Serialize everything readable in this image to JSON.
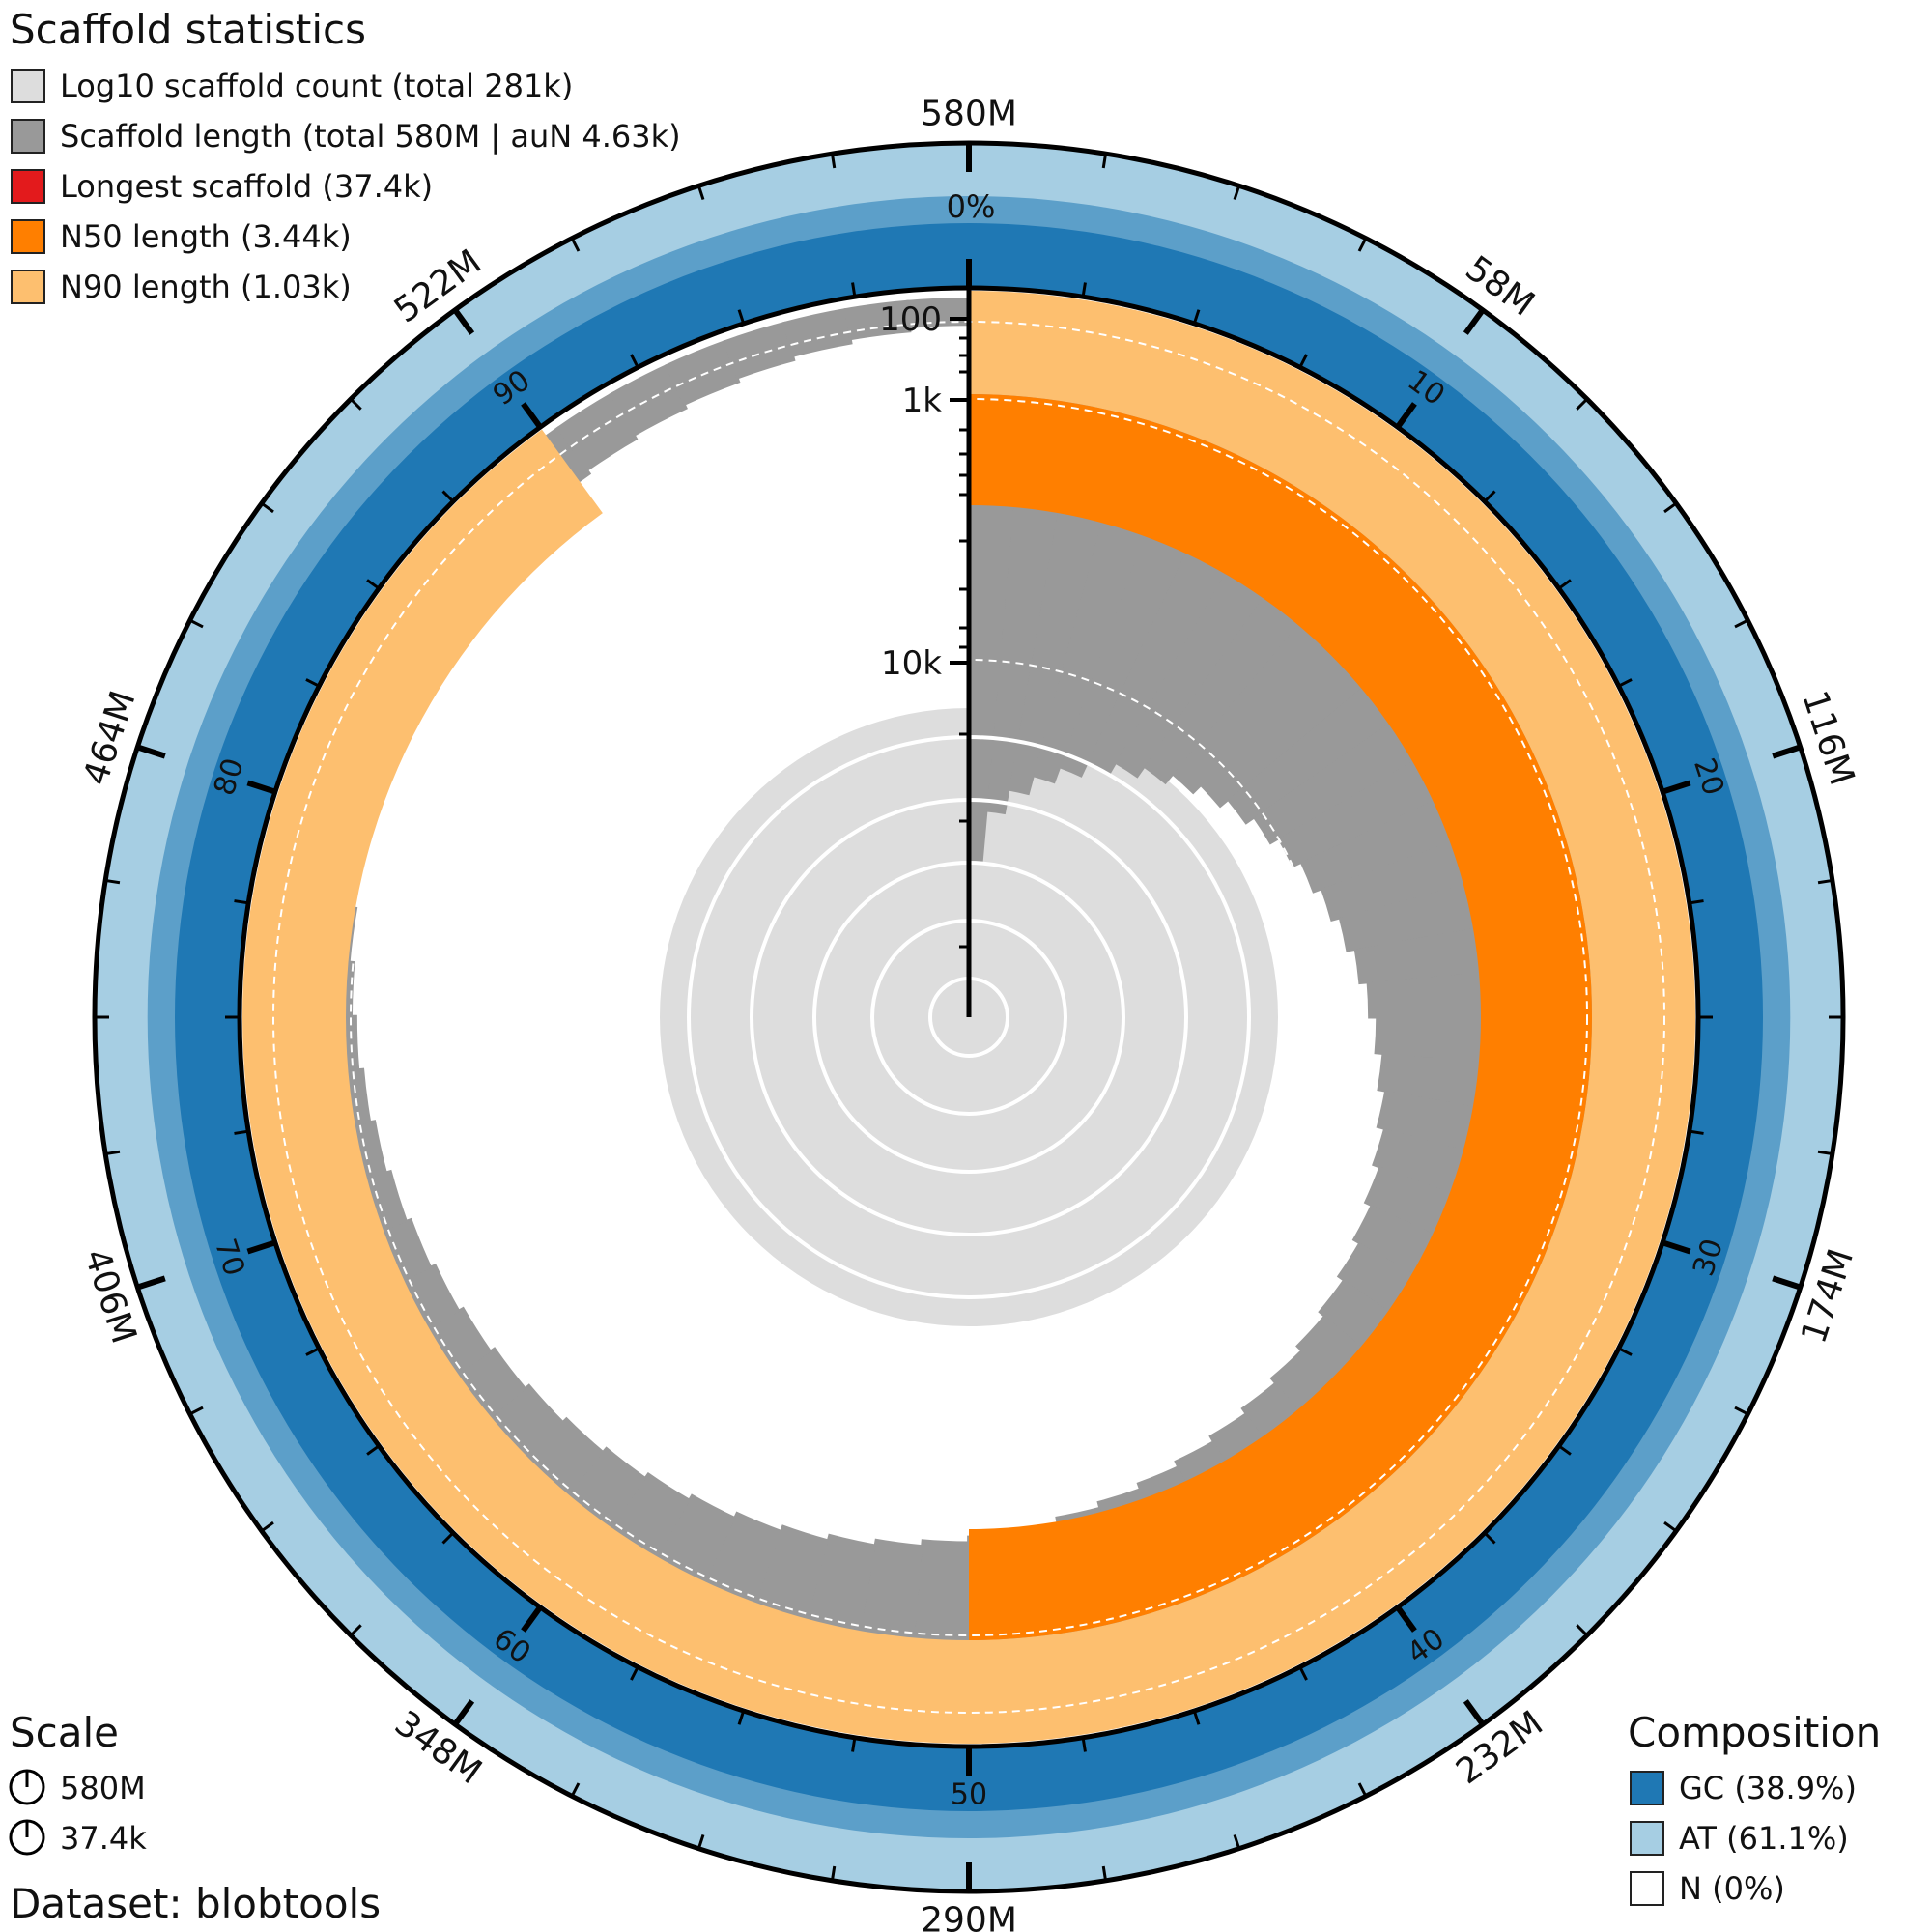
{
  "title": "Scaffold statistics",
  "legend": [
    {
      "label": "Log10 scaffold count (total 281k)",
      "color": "#dddddd"
    },
    {
      "label": "Scaffold length (total 580M | auN 4.63k)",
      "color": "#999999"
    },
    {
      "label": "Longest scaffold (37.4k)",
      "color": "#e31a1c"
    },
    {
      "label": "N50 length (3.44k)",
      "color": "#ff7f00"
    },
    {
      "label": "N90 length (1.03k)",
      "color": "#fdbf6f"
    }
  ],
  "scale": {
    "title": "Scale",
    "items": [
      "580M",
      "37.4k"
    ]
  },
  "dataset": "Dataset: blobtools",
  "composition": {
    "title": "Composition",
    "items": [
      {
        "label": "GC (38.9%)",
        "color": "#1f78b4"
      },
      {
        "label": "AT (61.1%)",
        "color": "#a6cee3"
      },
      {
        "label": "N (0%)",
        "color": "#ffffff"
      }
    ]
  },
  "chart_data": {
    "type": "snail",
    "total_length": "580M",
    "total_count": "281k",
    "auN": "4.63k",
    "longest_scaffold": "37.4k",
    "N50": "3.44k",
    "N90": "1.03k",
    "gc_percent": 38.9,
    "at_percent": 61.1,
    "n_percent": 0,
    "outer_ticks": [
      "580M",
      "58M",
      "116M",
      "174M",
      "232M",
      "290M",
      "348M",
      "406M",
      "464M",
      "522M"
    ],
    "percent_ticks": [
      "0%",
      "10",
      "20",
      "30",
      "40",
      "50",
      "60",
      "70",
      "80",
      "90"
    ],
    "radial_ticks": [
      "100",
      "1k",
      "10k"
    ],
    "n50_fraction": 0.5,
    "n90_fraction": 0.9
  }
}
